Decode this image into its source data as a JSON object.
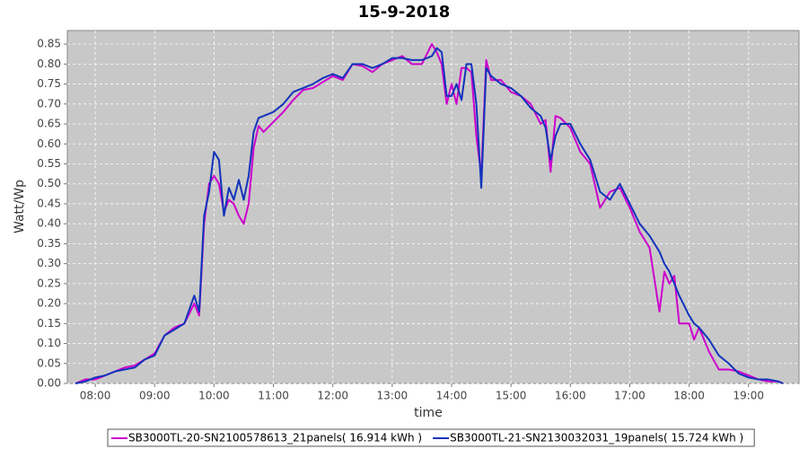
{
  "chart_data": {
    "type": "line",
    "title": "15-9-2018",
    "x_label": "time",
    "y_label": "Watt/Wp",
    "x": [
      7.667,
      7.833,
      8,
      8.167,
      8.333,
      8.5,
      8.667,
      8.833,
      9,
      9.167,
      9.333,
      9.5,
      9.667,
      9.75,
      9.833,
      9.917,
      10,
      10.083,
      10.167,
      10.25,
      10.333,
      10.417,
      10.5,
      10.583,
      10.667,
      10.75,
      10.833,
      11,
      11.167,
      11.333,
      11.5,
      11.667,
      11.833,
      12,
      12.167,
      12.333,
      12.5,
      12.667,
      12.833,
      13,
      13.167,
      13.333,
      13.5,
      13.667,
      13.75,
      13.833,
      13.917,
      14,
      14.083,
      14.167,
      14.25,
      14.333,
      14.417,
      14.5,
      14.583,
      14.667,
      14.833,
      15,
      15.167,
      15.333,
      15.5,
      15.583,
      15.667,
      15.75,
      15.833,
      16,
      16.167,
      16.333,
      16.5,
      16.667,
      16.833,
      17,
      17.167,
      17.333,
      17.5,
      17.583,
      17.667,
      17.75,
      17.833,
      18,
      18.083,
      18.167,
      18.333,
      18.5,
      18.667,
      18.833,
      19,
      19.167,
      19.333,
      19.5,
      19.583
    ],
    "series": [
      {
        "name": "SB3000TL-20-SN2100578613_21panels( 16.914 kWh )",
        "color": "#cc00cc",
        "values": [
          0,
          0.01,
          0.01,
          0.02,
          0.03,
          0.04,
          0.045,
          0.06,
          0.075,
          0.12,
          0.14,
          0.15,
          0.2,
          0.17,
          0.4,
          0.5,
          0.52,
          0.5,
          0.43,
          0.46,
          0.45,
          0.42,
          0.4,
          0.45,
          0.59,
          0.645,
          0.63,
          0.655,
          0.68,
          0.71,
          0.735,
          0.74,
          0.755,
          0.77,
          0.76,
          0.8,
          0.795,
          0.78,
          0.8,
          0.81,
          0.82,
          0.8,
          0.8,
          0.85,
          0.83,
          0.8,
          0.7,
          0.75,
          0.7,
          0.79,
          0.79,
          0.78,
          0.62,
          0.52,
          0.81,
          0.76,
          0.76,
          0.73,
          0.72,
          0.7,
          0.65,
          0.66,
          0.53,
          0.67,
          0.665,
          0.64,
          0.58,
          0.55,
          0.44,
          0.48,
          0.49,
          0.44,
          0.38,
          0.34,
          0.18,
          0.28,
          0.25,
          0.27,
          0.15,
          0.15,
          0.11,
          0.14,
          0.08,
          0.035,
          0.035,
          0.03,
          0.02,
          0.01,
          0.005,
          0.005,
          0
        ]
      },
      {
        "name": "SB3000TL-21-SN2130032031_19panels( 15.724 kWh )",
        "color": "#1133bb",
        "values": [
          0,
          0.005,
          0.015,
          0.02,
          0.03,
          0.035,
          0.04,
          0.06,
          0.07,
          0.12,
          0.135,
          0.15,
          0.22,
          0.18,
          0.42,
          0.48,
          0.58,
          0.56,
          0.42,
          0.49,
          0.46,
          0.51,
          0.46,
          0.52,
          0.63,
          0.665,
          0.67,
          0.68,
          0.7,
          0.73,
          0.74,
          0.75,
          0.765,
          0.775,
          0.765,
          0.8,
          0.8,
          0.79,
          0.8,
          0.815,
          0.815,
          0.81,
          0.81,
          0.82,
          0.84,
          0.83,
          0.72,
          0.72,
          0.75,
          0.71,
          0.8,
          0.8,
          0.7,
          0.49,
          0.79,
          0.77,
          0.75,
          0.74,
          0.72,
          0.69,
          0.67,
          0.64,
          0.56,
          0.62,
          0.65,
          0.65,
          0.6,
          0.56,
          0.48,
          0.46,
          0.5,
          0.45,
          0.4,
          0.37,
          0.33,
          0.3,
          0.28,
          0.25,
          0.22,
          0.17,
          0.15,
          0.14,
          0.11,
          0.07,
          0.05,
          0.025,
          0.015,
          0.01,
          0.01,
          0.005,
          0
        ]
      }
    ],
    "xlim": [
      7.53,
      19.85
    ],
    "ylim": [
      0,
      0.884
    ],
    "xticks": [
      {
        "value": 8,
        "label": "08:00"
      },
      {
        "value": 9,
        "label": "09:00"
      },
      {
        "value": 10,
        "label": "10:00"
      },
      {
        "value": 11,
        "label": "11:00"
      },
      {
        "value": 12,
        "label": "12:00"
      },
      {
        "value": 13,
        "label": "13:00"
      },
      {
        "value": 14,
        "label": "14:00"
      },
      {
        "value": 15,
        "label": "15:00"
      },
      {
        "value": 16,
        "label": "16:00"
      },
      {
        "value": 17,
        "label": "17:00"
      },
      {
        "value": 18,
        "label": "18:00"
      },
      {
        "value": 19,
        "label": "19:00"
      }
    ],
    "yticks": [
      {
        "value": 0,
        "label": "0.00"
      },
      0.05,
      {
        "value": 0.1,
        "label": "0.10"
      },
      0.15,
      {
        "value": 0.2,
        "label": "0.20"
      },
      0.25,
      {
        "value": 0.3,
        "label": "0.30"
      },
      0.35,
      {
        "value": 0.4,
        "label": "0.40"
      },
      0.45,
      {
        "value": 0.5,
        "label": "0.50"
      },
      0.55,
      {
        "value": 0.6,
        "label": "0.60"
      },
      0.65,
      {
        "value": 0.7,
        "label": "0.70"
      },
      0.75,
      {
        "value": 0.8,
        "label": "0.80"
      },
      0.85
    ],
    "grid": true,
    "legend": "bottom"
  }
}
